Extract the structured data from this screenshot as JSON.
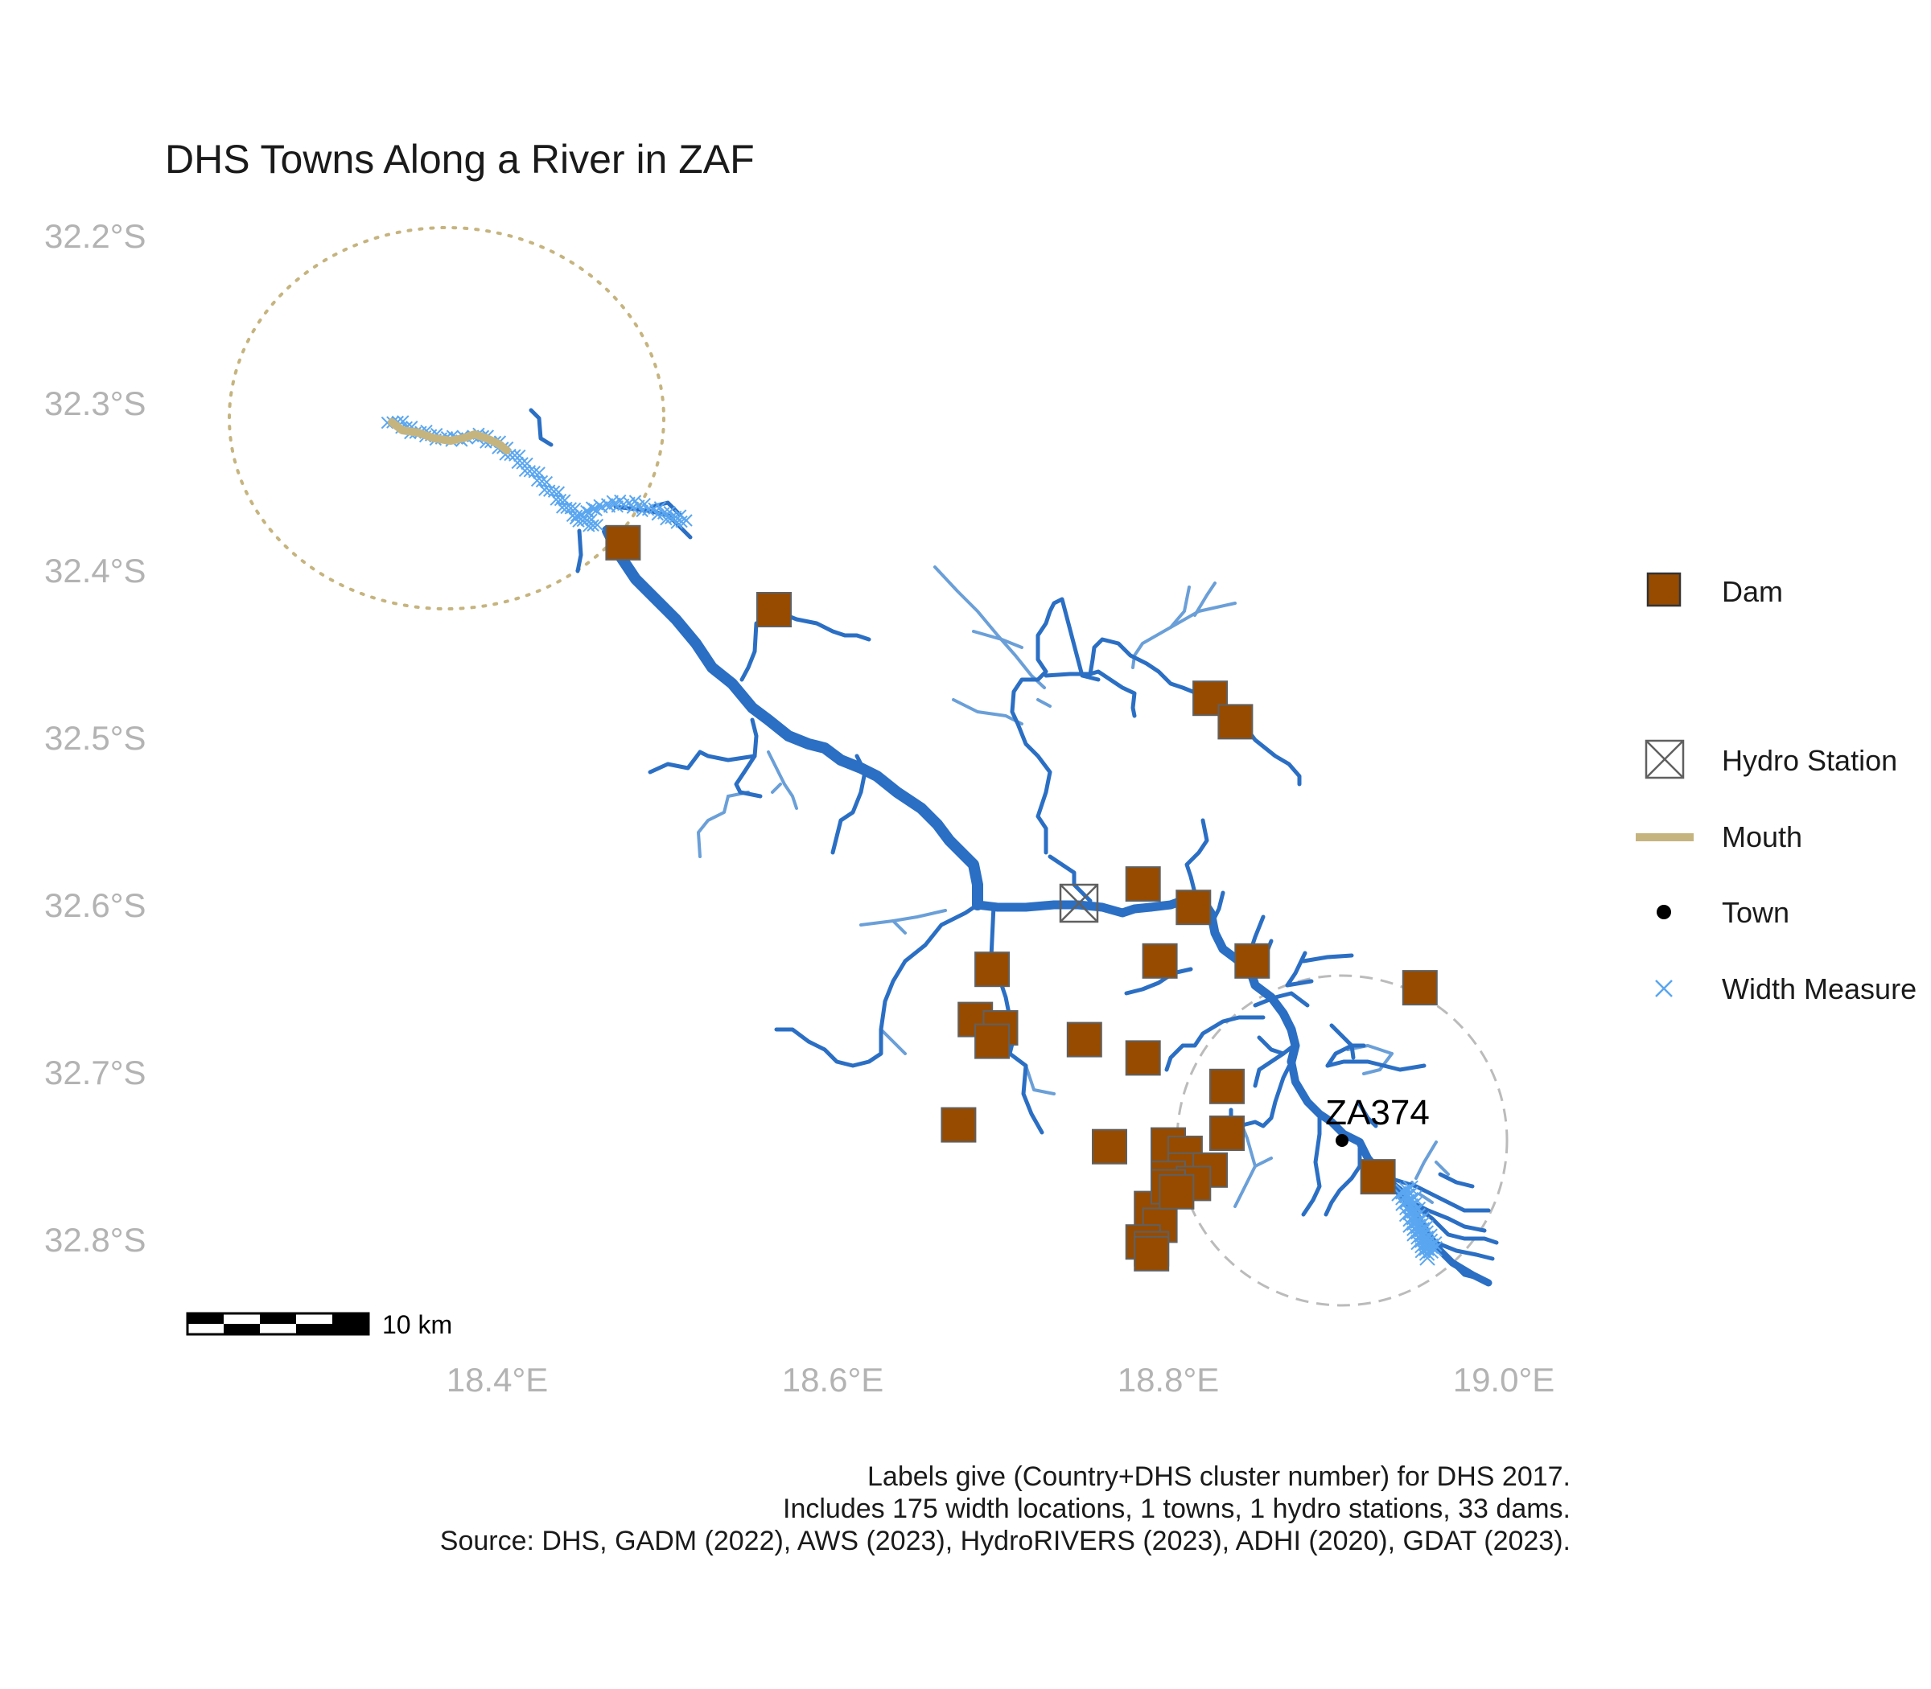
{
  "title": "DHS Towns Along a River in ZAF",
  "axes": {
    "y_ticks": [
      "32.2°S",
      "32.3°S",
      "32.4°S",
      "32.5°S",
      "32.6°S",
      "32.7°S",
      "32.8°S"
    ],
    "x_ticks": [
      "18.4°E",
      "18.6°E",
      "18.8°E",
      "19.0°E"
    ]
  },
  "legend": [
    {
      "name": "dam",
      "label": "Dam"
    },
    {
      "name": "hydro-station",
      "label": "Hydro Station"
    },
    {
      "name": "mouth",
      "label": "Mouth"
    },
    {
      "name": "town",
      "label": "Town"
    },
    {
      "name": "width-measure",
      "label": "Width Measure"
    }
  ],
  "scale_bar": {
    "label": "10 km"
  },
  "towns": [
    {
      "label": "ZA374",
      "lon": 18.905,
      "lat": -32.74
    }
  ],
  "hydro_stations": [
    {
      "lon": 18.745,
      "lat": -32.6
    }
  ],
  "dams": [
    {
      "lon": 18.475,
      "lat": -32.385
    },
    {
      "lon": 18.565,
      "lat": -32.425
    },
    {
      "lon": 18.825,
      "lat": -32.478
    },
    {
      "lon": 18.84,
      "lat": -32.492
    },
    {
      "lon": 18.785,
      "lat": -32.589
    },
    {
      "lon": 18.815,
      "lat": -32.603
    },
    {
      "lon": 18.795,
      "lat": -32.635
    },
    {
      "lon": 18.85,
      "lat": -32.635
    },
    {
      "lon": 18.95,
      "lat": -32.651
    },
    {
      "lon": 18.695,
      "lat": -32.64
    },
    {
      "lon": 18.685,
      "lat": -32.67
    },
    {
      "lon": 18.7,
      "lat": -32.675
    },
    {
      "lon": 18.695,
      "lat": -32.683
    },
    {
      "lon": 18.75,
      "lat": -32.682
    },
    {
      "lon": 18.785,
      "lat": -32.693
    },
    {
      "lon": 18.835,
      "lat": -32.71
    },
    {
      "lon": 18.675,
      "lat": -32.733
    },
    {
      "lon": 18.765,
      "lat": -32.746
    },
    {
      "lon": 18.835,
      "lat": -32.738
    },
    {
      "lon": 18.8,
      "lat": -32.745
    },
    {
      "lon": 18.81,
      "lat": -32.75
    },
    {
      "lon": 18.81,
      "lat": -32.76
    },
    {
      "lon": 18.825,
      "lat": -32.76
    },
    {
      "lon": 18.8,
      "lat": -32.765
    },
    {
      "lon": 18.815,
      "lat": -32.768
    },
    {
      "lon": 18.79,
      "lat": -32.783
    },
    {
      "lon": 18.795,
      "lat": -32.793
    },
    {
      "lon": 18.785,
      "lat": -32.803
    },
    {
      "lon": 18.79,
      "lat": -32.807
    },
    {
      "lon": 18.79,
      "lat": -32.81
    },
    {
      "lon": 18.925,
      "lat": -32.764
    },
    {
      "lon": 18.8,
      "lat": -32.77
    },
    {
      "lon": 18.805,
      "lat": -32.773
    }
  ],
  "caption": [
    "Labels give (Country+DHS cluster number) for DHS 2017.",
    "Includes 175 width locations, 1 towns, 1 hydro stations, 33 dams.",
    "Source: DHS, GADM (2022), AWS (2023), HydroRIVERS (2023), ADHI (2020), GDAT (2023)."
  ],
  "colors": {
    "river_main": "#2b6fc4",
    "river_minor": "#6a9fd8",
    "width_measure": "#5aa6f0",
    "mouth": "#c6b47f",
    "dam_fill": "#964B00",
    "dam_stroke": "#606060",
    "buffer_dashed": "#bbbbbb",
    "buffer_dotted": "#c6b47f"
  }
}
